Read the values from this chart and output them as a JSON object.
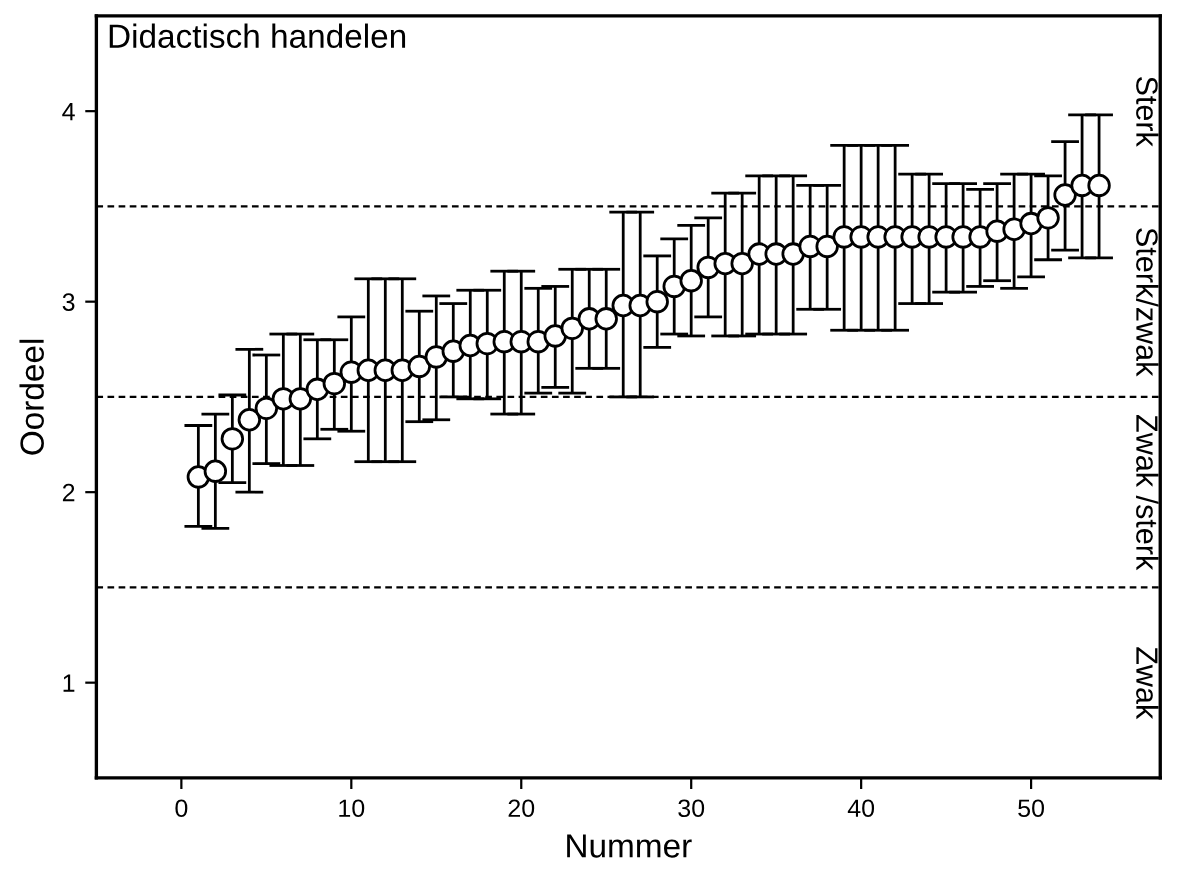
{
  "chart_data": {
    "type": "scatter",
    "title": "Didactisch handelen",
    "xlabel": "Nummer",
    "ylabel": "Oordeel",
    "x": [
      1,
      2,
      3,
      4,
      5,
      6,
      7,
      8,
      9,
      10,
      11,
      12,
      13,
      14,
      15,
      16,
      17,
      18,
      19,
      20,
      21,
      22,
      23,
      24,
      25,
      26,
      27,
      28,
      29,
      30,
      31,
      32,
      33,
      34,
      35,
      36,
      37,
      38,
      39,
      40,
      41,
      42,
      43,
      44,
      45,
      46,
      47,
      48,
      49,
      50,
      51,
      52,
      53,
      54
    ],
    "values": [
      2.08,
      2.11,
      2.28,
      2.38,
      2.44,
      2.49,
      2.49,
      2.54,
      2.57,
      2.63,
      2.64,
      2.64,
      2.64,
      2.66,
      2.71,
      2.74,
      2.77,
      2.78,
      2.79,
      2.79,
      2.79,
      2.82,
      2.86,
      2.91,
      2.91,
      2.98,
      2.98,
      3.0,
      3.08,
      3.11,
      3.18,
      3.2,
      3.2,
      3.25,
      3.25,
      3.25,
      3.29,
      3.29,
      3.34,
      3.34,
      3.34,
      3.34,
      3.34,
      3.34,
      3.34,
      3.34,
      3.34,
      3.37,
      3.38,
      3.41,
      3.44,
      3.56,
      3.61,
      3.61
    ],
    "errors": [
      [
        1.82,
        2.35
      ],
      [
        1.81,
        2.41
      ],
      [
        2.05,
        2.51
      ],
      [
        2.0,
        2.75
      ],
      [
        2.15,
        2.72
      ],
      [
        2.14,
        2.83
      ],
      [
        2.14,
        2.83
      ],
      [
        2.28,
        2.8
      ],
      [
        2.33,
        2.8
      ],
      [
        2.32,
        2.92
      ],
      [
        2.16,
        3.12
      ],
      [
        2.16,
        3.12
      ],
      [
        2.16,
        3.12
      ],
      [
        2.37,
        2.95
      ],
      [
        2.38,
        3.03
      ],
      [
        2.5,
        2.99
      ],
      [
        2.49,
        3.06
      ],
      [
        2.49,
        3.06
      ],
      [
        2.41,
        3.16
      ],
      [
        2.41,
        3.16
      ],
      [
        2.52,
        3.07
      ],
      [
        2.55,
        3.08
      ],
      [
        2.52,
        3.17
      ],
      [
        2.65,
        3.17
      ],
      [
        2.65,
        3.17
      ],
      [
        2.5,
        3.47
      ],
      [
        2.5,
        3.47
      ],
      [
        2.76,
        3.24
      ],
      [
        2.83,
        3.33
      ],
      [
        2.82,
        3.4
      ],
      [
        2.92,
        3.44
      ],
      [
        2.82,
        3.57
      ],
      [
        2.82,
        3.57
      ],
      [
        2.83,
        3.66
      ],
      [
        2.83,
        3.66
      ],
      [
        2.83,
        3.66
      ],
      [
        2.96,
        3.61
      ],
      [
        2.96,
        3.61
      ],
      [
        2.85,
        3.82
      ],
      [
        2.85,
        3.82
      ],
      [
        2.85,
        3.82
      ],
      [
        2.85,
        3.82
      ],
      [
        2.99,
        3.67
      ],
      [
        2.99,
        3.67
      ],
      [
        3.05,
        3.62
      ],
      [
        3.05,
        3.62
      ],
      [
        3.08,
        3.59
      ],
      [
        3.11,
        3.62
      ],
      [
        3.07,
        3.67
      ],
      [
        3.13,
        3.67
      ],
      [
        3.22,
        3.66
      ],
      [
        3.27,
        3.84
      ],
      [
        3.23,
        3.98
      ],
      [
        3.23,
        3.98
      ]
    ],
    "color": "#ffffff",
    "marker": "circle",
    "xlim": [
      -5,
      57.6
    ],
    "ylim": [
      0.5,
      4.5
    ],
    "xticks": [
      0,
      10,
      20,
      30,
      40,
      50
    ],
    "yticks": [
      1,
      2,
      3,
      4
    ],
    "ref_lines": [
      {
        "axis": "y",
        "value": 3.5,
        "color": "#000000",
        "line_style": "dashed"
      },
      {
        "axis": "y",
        "value": 2.5,
        "color": "#000000",
        "line_style": "dashed"
      },
      {
        "axis": "y",
        "value": 1.5,
        "color": "#000000",
        "line_style": "dashed"
      }
    ],
    "annotations": [
      "Sterk",
      "Sterk/zwak",
      "Zwak /sterk",
      "Zwak"
    ],
    "grid": false,
    "legend": false
  }
}
